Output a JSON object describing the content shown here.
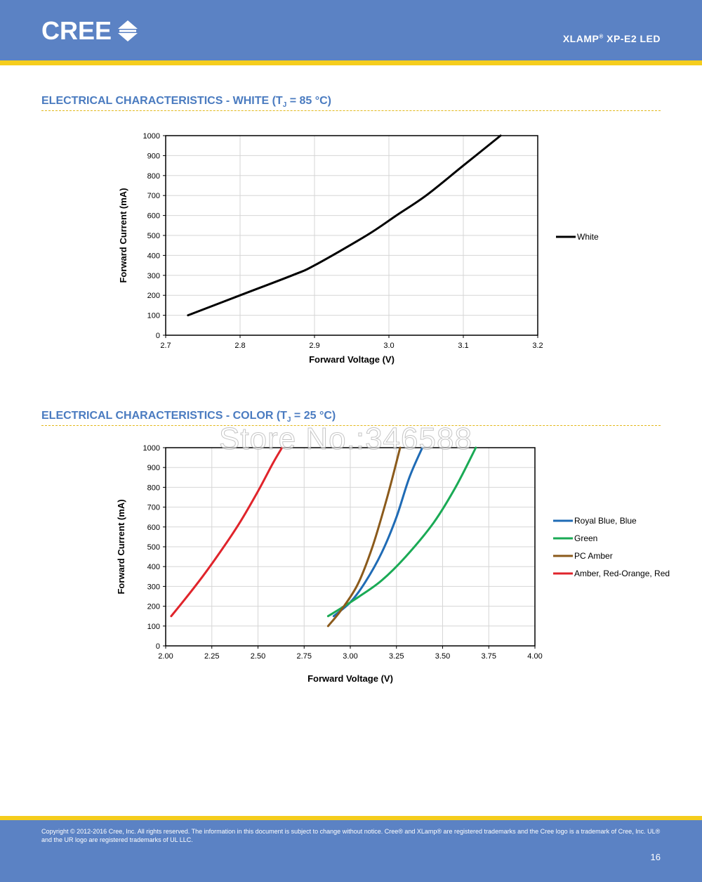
{
  "header": {
    "logo_text": "CREE",
    "doc_title_pre": "XLAMP",
    "doc_title_reg": "®",
    "doc_title_post": " XP-E2 LED"
  },
  "colors": {
    "brand_blue": "#5b82c4",
    "brand_yellow": "#f5cd1d",
    "title_blue": "#4a7bc0"
  },
  "section1": {
    "title_pre": "ELECTRICAL CHARACTERISTICS - WHITE (T",
    "title_sub": "J",
    "title_post": " = 85 °C)"
  },
  "section2": {
    "title_pre": "ELECTRICAL CHARACTERISTICS - COLOR (T",
    "title_sub": "J",
    "title_post": " = 25 °C)"
  },
  "watermark": "Store No.:346588",
  "chart_data": [
    {
      "type": "line",
      "xlabel": "Forward Voltage (V)",
      "ylabel": "Forward Current (mA)",
      "xlim": [
        2.7,
        3.2
      ],
      "ylim": [
        0,
        1000
      ],
      "xticks": [
        2.7,
        2.8,
        2.9,
        3.0,
        3.1,
        3.2
      ],
      "xtick_labels": [
        "2.7",
        "2.8",
        "2.9",
        "3.0",
        "3.1",
        "3.2"
      ],
      "yticks": [
        0,
        100,
        200,
        300,
        400,
        500,
        600,
        700,
        800,
        900,
        1000
      ],
      "ytick_labels": [
        "0",
        "100",
        "200",
        "300",
        "400",
        "500",
        "600",
        "700",
        "800",
        "900",
        "1000"
      ],
      "grid": true,
      "legend": "right",
      "series": [
        {
          "name": "White",
          "color": "#000000",
          "x": [
            2.73,
            2.8,
            2.87,
            2.9,
            2.97,
            3.01,
            3.05,
            3.1,
            3.15
          ],
          "y": [
            100,
            200,
            300,
            350,
            500,
            600,
            700,
            850,
            1000
          ]
        }
      ]
    },
    {
      "type": "line",
      "xlabel": "Forward Voltage (V)",
      "ylabel": "Forward Current (mA)",
      "xlim": [
        2.0,
        4.0
      ],
      "ylim": [
        0,
        1000
      ],
      "xticks": [
        2.0,
        2.25,
        2.5,
        2.75,
        3.0,
        3.25,
        3.5,
        3.75,
        4.0
      ],
      "xtick_labels": [
        "2.00",
        "2.25",
        "2.50",
        "2.75",
        "3.00",
        "3.25",
        "3.50",
        "3.75",
        "4.00"
      ],
      "yticks": [
        0,
        100,
        200,
        300,
        400,
        500,
        600,
        700,
        800,
        900,
        1000
      ],
      "ytick_labels": [
        "0",
        "100",
        "200",
        "300",
        "400",
        "500",
        "600",
        "700",
        "800",
        "900",
        "1000"
      ],
      "grid": true,
      "legend": "right",
      "series": [
        {
          "name": "Royal Blue, Blue",
          "color": "#1f6bb5",
          "x": [
            2.91,
            3.0,
            3.08,
            3.17,
            3.25,
            3.32,
            3.39
          ],
          "y": [
            150,
            220,
            320,
            470,
            650,
            850,
            1000
          ]
        },
        {
          "name": "Green",
          "color": "#1aaa55",
          "x": [
            2.88,
            2.95,
            3.05,
            3.17,
            3.3,
            3.45,
            3.57,
            3.68
          ],
          "y": [
            150,
            190,
            250,
            330,
            450,
            620,
            800,
            1000
          ]
        },
        {
          "name": "PC Amber",
          "color": "#8b5a1b",
          "x": [
            2.88,
            2.95,
            3.04,
            3.12,
            3.2,
            3.27
          ],
          "y": [
            100,
            180,
            310,
            500,
            750,
            1000
          ]
        },
        {
          "name": "Amber, Red-Orange, Red",
          "color": "#e0242b",
          "x": [
            2.03,
            2.1,
            2.2,
            2.3,
            2.4,
            2.5,
            2.58,
            2.63
          ],
          "y": [
            150,
            230,
            350,
            480,
            620,
            780,
            920,
            1000
          ]
        }
      ]
    }
  ],
  "footer": {
    "copyright": "Copyright © 2012-2016 Cree, Inc. All rights reserved. The information in this document is subject to change without notice. Cree® and XLamp® are registered trademarks and the Cree logo is a trademark of Cree, Inc. UL® and the UR logo are registered trademarks of UL LLC.",
    "page_number": "16"
  }
}
